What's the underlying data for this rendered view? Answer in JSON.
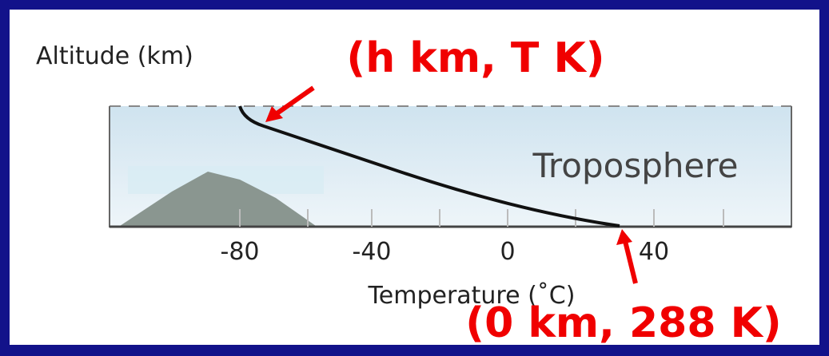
{
  "y_axis_label": "Altitude (km)",
  "x_axis_label": "Temperature (˚C)",
  "x_tick_labels": [
    "-80",
    "-40",
    "0",
    "40"
  ],
  "region_label": "Troposphere",
  "annotations": [
    "(h km, T K)",
    "(0 km, 288 K)"
  ]
}
